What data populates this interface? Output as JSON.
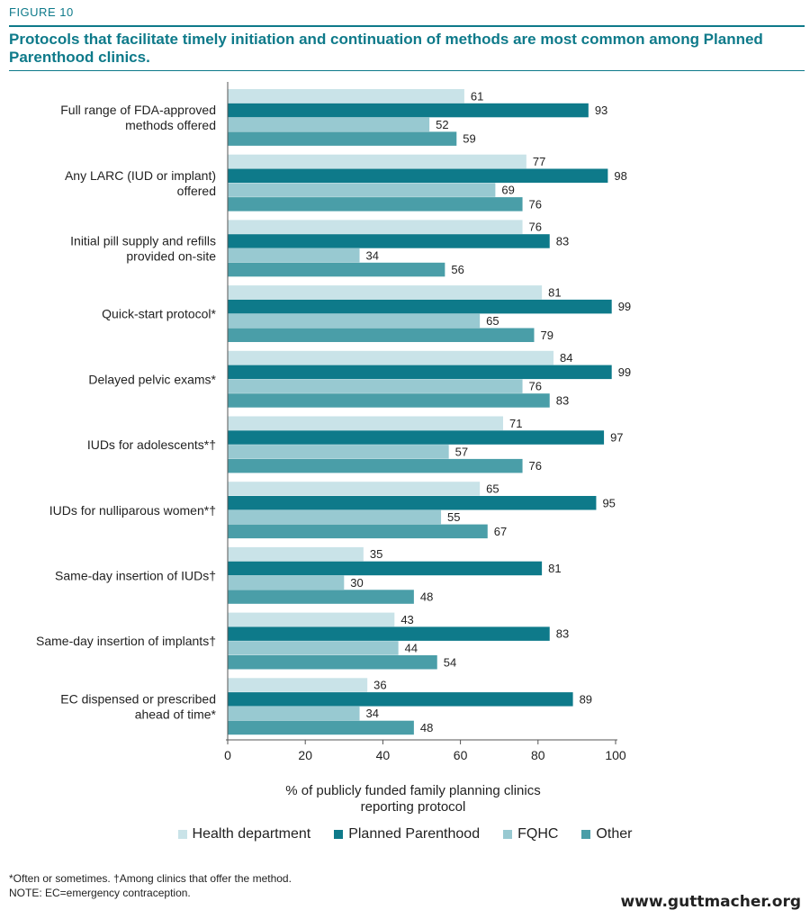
{
  "figure_label": "FIGURE 10",
  "title": "Protocols that facilitate timely initiation and continuation of methods are most common among Planned Parenthood clinics.",
  "footnotes": [
    "*Often or sometimes. †Among clinics that offer the method.",
    "NOTE: EC=emergency contraception."
  ],
  "source": "www.guttmacher.org",
  "chart_data": {
    "type": "bar",
    "orientation": "horizontal",
    "categories": [
      "Full range of FDA-approved methods offered",
      "Any LARC (IUD or implant) offered",
      "Initial pill supply and refills provided on-site",
      "Quick-start protocol*",
      "Delayed pelvic exams*",
      "IUDs for adolescents*†",
      "IUDs for nulliparous women*†",
      "Same-day insertion of IUDs†",
      "Same-day insertion of implants†",
      "EC dispensed or prescribed ahead of time*"
    ],
    "category_lines": [
      [
        "Full range of FDA-approved",
        "methods offered"
      ],
      [
        "Any LARC (IUD or implant)",
        "offered"
      ],
      [
        "Initial pill supply and refills",
        "provided on-site"
      ],
      [
        "Quick-start protocol*"
      ],
      [
        "Delayed pelvic exams*"
      ],
      [
        "IUDs for adolescents*†"
      ],
      [
        "IUDs for nulliparous women*†"
      ],
      [
        "Same-day insertion of IUDs†"
      ],
      [
        "Same-day insertion of implants†"
      ],
      [
        "EC dispensed or prescribed",
        "ahead of time*"
      ]
    ],
    "series": [
      {
        "name": "Health department",
        "color": "#c9e3e8",
        "values": [
          61,
          77,
          76,
          81,
          84,
          71,
          65,
          35,
          43,
          36
        ]
      },
      {
        "name": "Planned Parenthood",
        "color": "#0e7a8a",
        "values": [
          93,
          98,
          83,
          99,
          99,
          97,
          95,
          81,
          83,
          89
        ]
      },
      {
        "name": "FQHC",
        "color": "#98c9d1",
        "values": [
          52,
          69,
          34,
          65,
          76,
          57,
          55,
          30,
          44,
          34
        ]
      },
      {
        "name": "Other",
        "color": "#4a9ea8",
        "values": [
          59,
          76,
          56,
          79,
          83,
          76,
          67,
          48,
          54,
          48
        ]
      }
    ],
    "xlim": [
      0,
      100
    ],
    "ticks": [
      0,
      20,
      40,
      60,
      80,
      100
    ],
    "xlabel_lines": [
      "% of publicly funded family planning clinics",
      "reporting protocol"
    ],
    "legend_position": "bottom"
  }
}
